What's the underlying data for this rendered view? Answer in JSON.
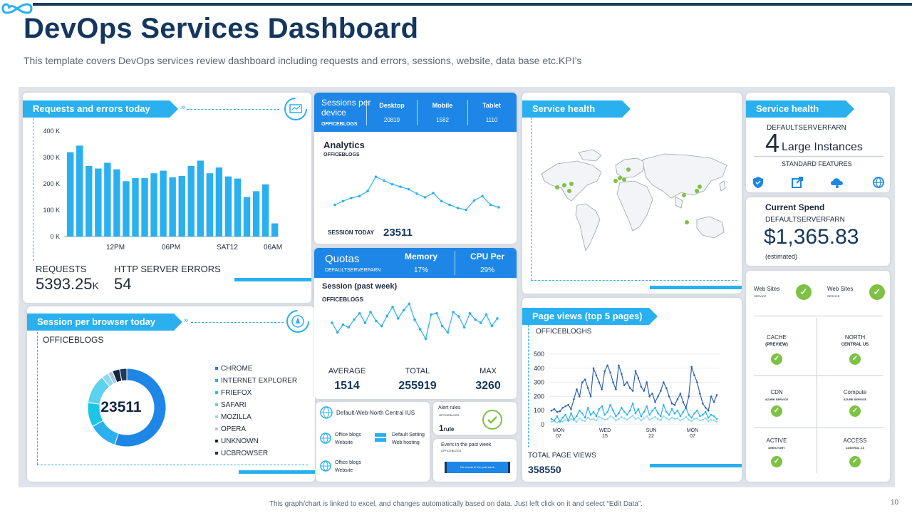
{
  "header": {
    "title": "DevOps Services Dashboard",
    "subtitle": "This template covers DevOps services review dashboard including requests and errors, sessions, website, data base etc.KPI’s"
  },
  "requests": {
    "ribbon": "Requests and errors today",
    "requests_label": "REQUESTS",
    "requests_value": "5393.25",
    "requests_unit": "K",
    "errors_label": "HTTP  SERVER ERRORS",
    "errors_value": "54"
  },
  "chart_data": [
    {
      "type": "bar",
      "y_ticks": [
        "400 K",
        "300 K",
        "200 K",
        "100 K",
        "0 K"
      ],
      "x_ticks": [
        "12PM",
        "06PM",
        "SAT12",
        "06AM"
      ],
      "ylim": [
        0,
        400
      ],
      "values": [
        320,
        345,
        268,
        258,
        280,
        255,
        210,
        222,
        222,
        240,
        250,
        225,
        230,
        268,
        288,
        240,
        262,
        228,
        220,
        150,
        172,
        198,
        50
      ],
      "color": "#2ab0ef"
    },
    {
      "type": "line",
      "values": [
        120,
        126,
        131,
        134,
        142,
        165,
        159,
        153,
        149,
        145,
        138,
        132,
        139,
        126,
        120,
        115,
        112,
        127,
        134,
        120,
        116
      ],
      "color": "#2ab0ef"
    },
    {
      "type": "line",
      "values": [
        55,
        40,
        52,
        48,
        60,
        70,
        55,
        72,
        58,
        50,
        66,
        80,
        62,
        75,
        85,
        60,
        45,
        30,
        68,
        70,
        50,
        40,
        72,
        65,
        48,
        70,
        60,
        55,
        68,
        50,
        62
      ],
      "color": "#2ab0ef"
    },
    {
      "type": "pie",
      "center_value": "23511",
      "labels": [
        "CHROME",
        "INTERNET EXPLORER",
        "FRIEFOX",
        "SAFARI",
        "MOZILLA",
        "OPERA",
        "UNKNOWN",
        "UCBROWSER"
      ],
      "values": [
        55,
        12,
        10,
        12,
        3,
        2,
        3,
        3
      ],
      "colors": [
        "#1d86e6",
        "#2ab0ef",
        "#1bc5e6",
        "#5bd2ee",
        "#8fd9f2",
        "#a9c8e6",
        "#12263f",
        "#1b3a5c"
      ]
    },
    {
      "type": "line",
      "y_ticks": [
        "500",
        "400",
        "300",
        "200",
        "100",
        "0"
      ],
      "ylim": [
        0,
        500
      ],
      "x_ticks": [
        "MON\n07",
        "WED\n15",
        "SUN\n22",
        "MON\n07"
      ],
      "series": [
        {
          "values": [
            100,
            110,
            90,
            95,
            120,
            130,
            140,
            110,
            180,
            250,
            200,
            300,
            320,
            260,
            200,
            400,
            350,
            300,
            250,
            380,
            420,
            370,
            300,
            250,
            420,
            360,
            280,
            300,
            260,
            240,
            380,
            330,
            270,
            240,
            300,
            200,
            220,
            160,
            200,
            240,
            300,
            260,
            200,
            150,
            140,
            180,
            220,
            160,
            120,
            200,
            410,
            350,
            300,
            220,
            150,
            120,
            100,
            200,
            160,
            210
          ],
          "color": "#2f62b8"
        },
        {
          "values": [
            40,
            30,
            60,
            20,
            50,
            70,
            30,
            80,
            40,
            60,
            100,
            80,
            50,
            120,
            70,
            90,
            60,
            110,
            130,
            70,
            90,
            140,
            100,
            60,
            80,
            120,
            90,
            70,
            100,
            150,
            80,
            110,
            60,
            90,
            130,
            70,
            100,
            120,
            80,
            60,
            140,
            90,
            70,
            110,
            80,
            100,
            60,
            90,
            120,
            70,
            50,
            80,
            100,
            60,
            70,
            90,
            50,
            70,
            60,
            40
          ],
          "color": "#2ab0ef"
        },
        {
          "values": [
            20,
            25,
            15,
            30,
            20,
            35,
            25,
            40,
            30,
            20,
            45,
            30,
            25,
            50,
            35,
            40,
            30,
            55,
            45,
            35,
            40,
            60,
            50,
            30,
            40,
            55,
            45,
            35,
            50,
            65,
            40,
            50,
            30,
            45,
            60,
            35,
            45,
            55,
            40,
            30,
            60,
            45,
            35,
            50,
            40,
            45,
            30,
            40,
            55,
            35,
            25,
            40,
            45,
            30,
            35,
            45,
            25,
            35,
            30,
            20
          ],
          "color": "#8fd9f2"
        }
      ]
    }
  ],
  "browser": {
    "ribbon": "Session per  browser today",
    "source": "OFFICEBLOGS"
  },
  "sessions": {
    "title": "Sessions per device",
    "source": "OFFICEBLOGS",
    "cols": [
      {
        "label": "Desktop",
        "value": "20819"
      },
      {
        "label": "Mobile",
        "value": "1582"
      },
      {
        "label": "Tablet",
        "value": "1110"
      }
    ]
  },
  "analytics": {
    "title": "Analytics",
    "source": "OFFICEBLOGS",
    "session_label": "SESSION  TODAY",
    "session_value": "23511"
  },
  "quotas": {
    "title": "Quotas",
    "source": "DEFAULTSERVERFARN",
    "memory_label": "Memory",
    "memory_value": "17%",
    "cpu_label": "CPU Per",
    "cpu_value": "29%"
  },
  "session_week": {
    "title": "Session (past week)",
    "source": "OFFICEBLOGS",
    "avg_label": "AVERAGE",
    "avg_value": "1514",
    "total_label": "TOTAL",
    "total_value": "255919",
    "max_label": "MAX",
    "max_value": "3260"
  },
  "web": {
    "title": "Default-Web-North Central IUS",
    "item1": "Office blogs",
    "item1_sub": "Website",
    "item2": "Default Setting",
    "item2_sub": "Web hosting",
    "item3": "Office blogs",
    "item3_sub": "Website"
  },
  "alerts": {
    "title": "Alert rules",
    "source": "OFFICEBLOGS",
    "value": "1",
    "unit": "rule"
  },
  "events": {
    "title": "Event in the past week",
    "source": "OFFICEBLOGS",
    "bar_label": "No events in the past week"
  },
  "service_health_map": {
    "ribbon": "Service health"
  },
  "page_views": {
    "ribbon": "Page views (top 5 pages)",
    "source": "OFFICEBLOGHS",
    "total_label": "TOTAL  PAGE VIEWS",
    "total_value": "358550"
  },
  "service_health": {
    "ribbon": "Service health",
    "server": "DEFAULTSERVERFARN",
    "count": "4",
    "instances": "Large Instances",
    "features": "STANDARD FEATURES"
  },
  "spend": {
    "title": "Current Spend",
    "server": "DEFAULTSERVERFARN",
    "value": "$1,365.83",
    "note": "(estimated)"
  },
  "status": {
    "web1": "Web Sites",
    "web1_sub": "SERVICE",
    "web2": "Web Sites",
    "web2_sub": "SERVICE",
    "cells": [
      {
        "label": "CACHE",
        "sub": "(PREVIEW)"
      },
      {
        "label": "NORTH",
        "sub": "CENTRAL US"
      },
      {
        "label": "CDN",
        "sub": "AZURE SERVICE"
      },
      {
        "label": "Compute",
        "sub": "AZURE SERVICE"
      },
      {
        "label": "ACTIVE",
        "sub": "DIRECTORY"
      },
      {
        "label": "ACCESS",
        "sub": "CONTROL 2.0"
      }
    ]
  },
  "footer": {
    "note": "This graph/chart is linked to excel, and changes automatically based on data. Just left click on it and select “Edit Data”.",
    "page": "10"
  },
  "colors": {
    "accent": "#2ab0ef",
    "primary": "#1d86e6",
    "navy": "#14375e",
    "ok": "#7dc243"
  }
}
